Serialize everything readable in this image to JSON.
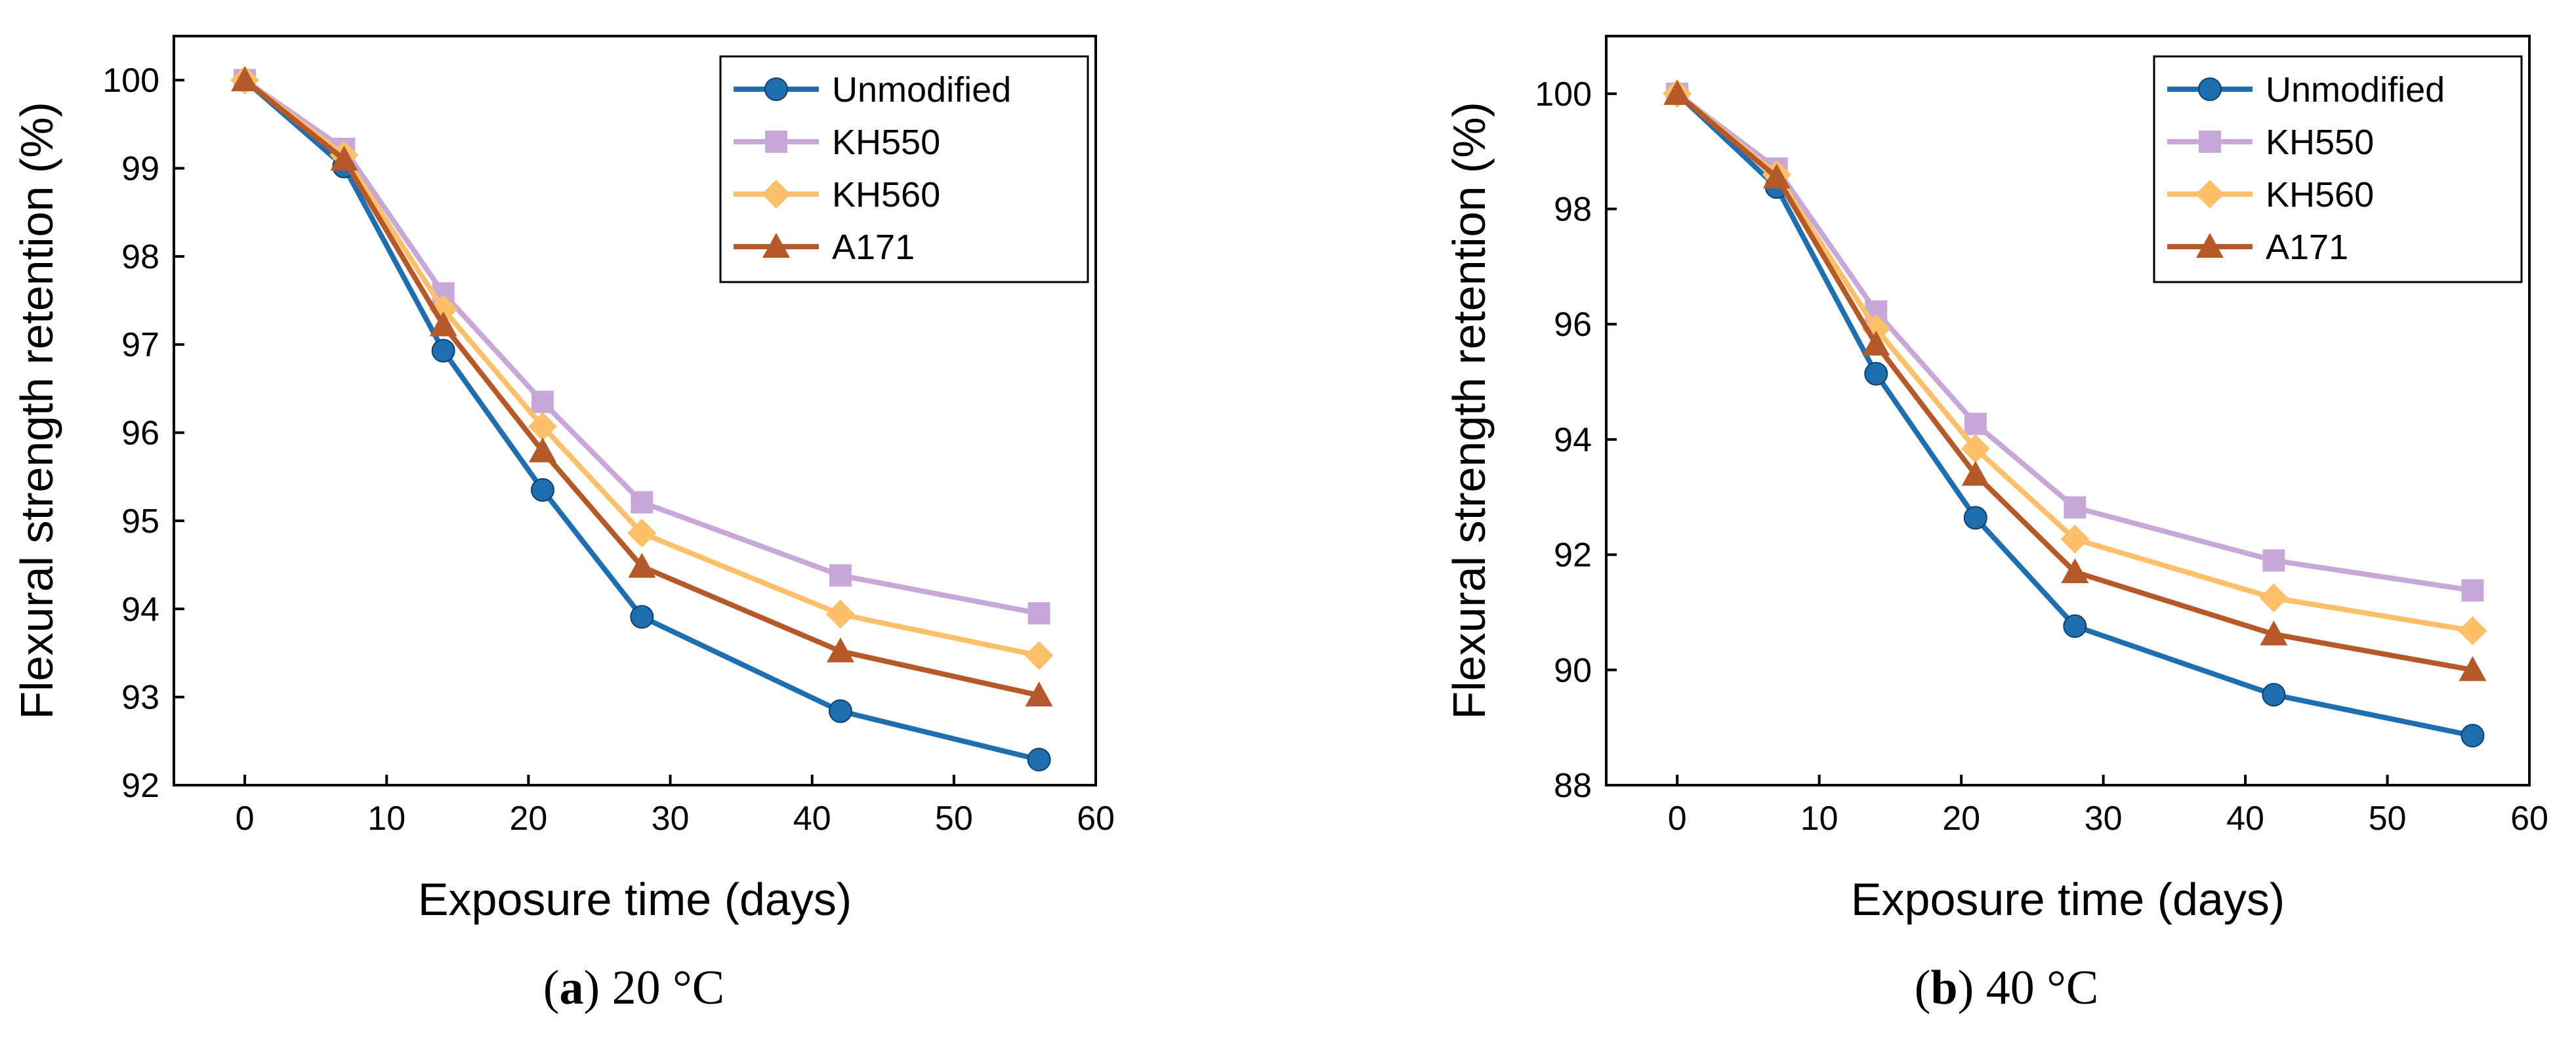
{
  "colors": {
    "Unmodified": "#1f6fb0",
    "KH550": "#c8a8d8",
    "KH560": "#fcbf6a",
    "A171": "#b5582a"
  },
  "chart_data": [
    {
      "type": "line",
      "id": "a",
      "caption_letter": "a",
      "caption_rest": ") 20 °C",
      "caption_open": "(",
      "xlabel": "Exposure time (days)",
      "ylabel": "Flexural strength retention (%)",
      "xlim": [
        -5,
        60
      ],
      "ylim": [
        92,
        100.5
      ],
      "xticks": [
        0,
        10,
        20,
        30,
        40,
        50,
        60
      ],
      "yticks": [
        92,
        93,
        94,
        95,
        96,
        97,
        98,
        99,
        100
      ],
      "x": [
        0,
        7,
        14,
        21,
        28,
        42,
        56
      ],
      "legend_position": "top-right",
      "series": [
        {
          "name": "Unmodified",
          "marker": "circle",
          "values": [
            100,
            99.02,
            96.93,
            95.35,
            93.91,
            92.84,
            92.29
          ]
        },
        {
          "name": "KH550",
          "marker": "square",
          "values": [
            100,
            99.22,
            97.58,
            96.35,
            95.21,
            94.38,
            93.95
          ]
        },
        {
          "name": "KH560",
          "marker": "diamond",
          "values": [
            100,
            99.15,
            97.4,
            96.07,
            94.86,
            93.94,
            93.47
          ]
        },
        {
          "name": "A171",
          "marker": "triangle",
          "values": [
            100,
            99.1,
            97.22,
            95.79,
            94.48,
            93.52,
            93.02
          ]
        }
      ]
    },
    {
      "type": "line",
      "id": "b",
      "caption_letter": "b",
      "caption_rest": ") 40 °C",
      "caption_open": "(",
      "xlabel": "Exposure time (days)",
      "ylabel": "Flexural strength retention (%)",
      "xlim": [
        -5,
        60
      ],
      "ylim": [
        88,
        101
      ],
      "xticks": [
        0,
        10,
        20,
        30,
        40,
        50,
        60
      ],
      "yticks": [
        88,
        90,
        92,
        94,
        96,
        98,
        100
      ],
      "x": [
        0,
        7,
        14,
        21,
        28,
        42,
        56
      ],
      "legend_position": "top-right",
      "series": [
        {
          "name": "Unmodified",
          "marker": "circle",
          "values": [
            100,
            98.38,
            95.14,
            92.64,
            90.76,
            89.57,
            88.86
          ]
        },
        {
          "name": "KH550",
          "marker": "square",
          "values": [
            100,
            98.7,
            96.22,
            94.27,
            92.82,
            91.9,
            91.38
          ]
        },
        {
          "name": "KH560",
          "marker": "diamond",
          "values": [
            100,
            98.6,
            95.92,
            93.84,
            92.27,
            91.25,
            90.68
          ]
        },
        {
          "name": "A171",
          "marker": "triangle",
          "values": [
            100,
            98.55,
            95.65,
            93.39,
            91.7,
            90.62,
            90.0
          ]
        }
      ]
    }
  ]
}
